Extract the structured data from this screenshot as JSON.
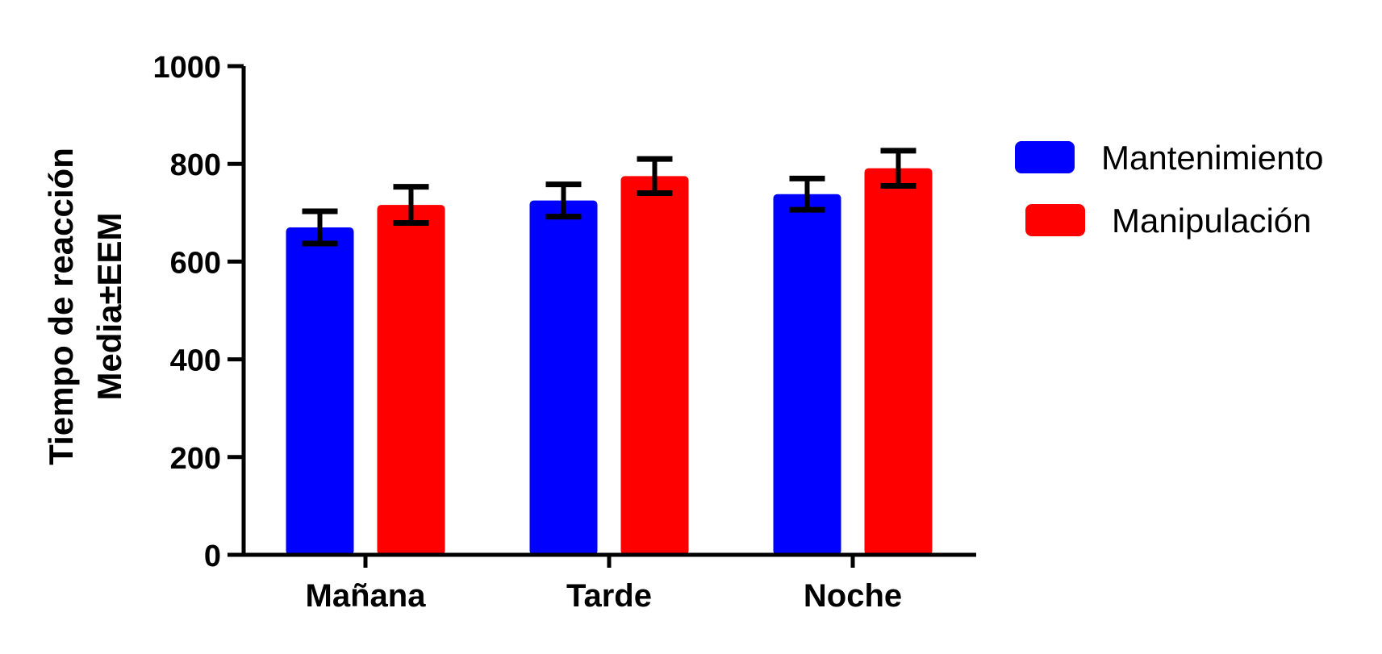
{
  "chart_data": {
    "type": "bar",
    "title": "",
    "xlabel": "",
    "ylabel": [
      "Tiempo de reacción",
      "Media±EEM"
    ],
    "categories": [
      "Mañana",
      "Tarde",
      "Noche"
    ],
    "series": [
      {
        "name": "Mantenimiento",
        "color": "#0000ff",
        "values": [
          670,
          725,
          738
        ],
        "error": [
          33,
          33,
          32
        ]
      },
      {
        "name": "Manipulación",
        "color": "#ff0000",
        "values": [
          716,
          775,
          791
        ],
        "error": [
          37,
          35,
          36
        ]
      }
    ],
    "ylim": [
      0,
      1000
    ],
    "yticks": [
      "0",
      "200",
      "400",
      "600",
      "800",
      "1000"
    ],
    "grid": false,
    "legend": "right"
  }
}
